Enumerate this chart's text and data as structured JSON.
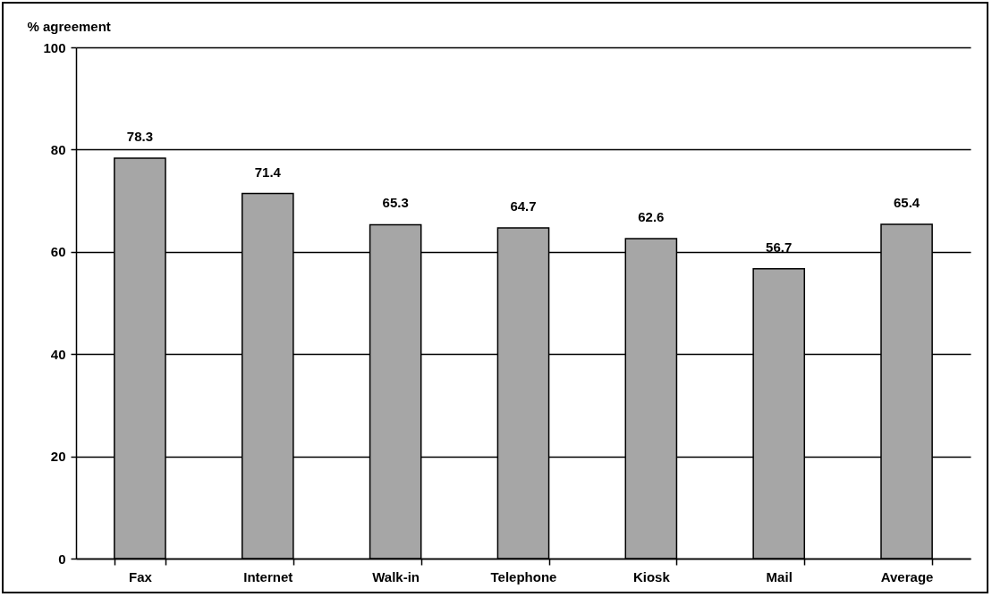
{
  "chart_data": {
    "type": "bar",
    "ylabel": "% agreement",
    "categories": [
      "Fax",
      "Internet",
      "Walk-in",
      "Telephone",
      "Kiosk",
      "Mail",
      "Average"
    ],
    "values": [
      78.3,
      71.4,
      65.3,
      64.7,
      62.6,
      56.7,
      65.4
    ],
    "color": "#a6a6a6",
    "ylim": [
      0,
      100
    ],
    "yticks": [
      0,
      20,
      40,
      60,
      80,
      100
    ],
    "grid": "y",
    "data_labels": true
  }
}
